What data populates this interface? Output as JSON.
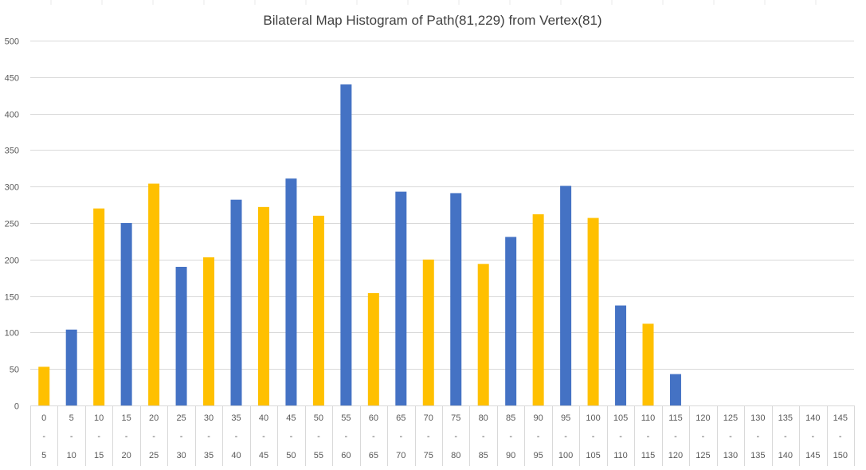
{
  "chart_data": {
    "type": "bar",
    "title": "Bilateral Map Histogram of Path(81,229) from Vertex(81)",
    "xlabel": "",
    "ylabel": "",
    "ylim": [
      0,
      500
    ],
    "yticks": [
      "0",
      "50",
      "100",
      "150",
      "200",
      "250",
      "300",
      "350",
      "400",
      "450",
      "500"
    ],
    "grid": true,
    "legend": "none",
    "categories": [
      {
        "start": "0",
        "sep": "-",
        "end": "5"
      },
      {
        "start": "5",
        "sep": "-",
        "end": "10"
      },
      {
        "start": "10",
        "sep": "-",
        "end": "15"
      },
      {
        "start": "15",
        "sep": "-",
        "end": "20"
      },
      {
        "start": "20",
        "sep": "-",
        "end": "25"
      },
      {
        "start": "25",
        "sep": "-",
        "end": "30"
      },
      {
        "start": "30",
        "sep": "-",
        "end": "35"
      },
      {
        "start": "35",
        "sep": "-",
        "end": "40"
      },
      {
        "start": "40",
        "sep": "-",
        "end": "45"
      },
      {
        "start": "45",
        "sep": "-",
        "end": "50"
      },
      {
        "start": "50",
        "sep": "-",
        "end": "55"
      },
      {
        "start": "55",
        "sep": "-",
        "end": "60"
      },
      {
        "start": "60",
        "sep": "-",
        "end": "65"
      },
      {
        "start": "65",
        "sep": "-",
        "end": "70"
      },
      {
        "start": "70",
        "sep": "-",
        "end": "75"
      },
      {
        "start": "75",
        "sep": "-",
        "end": "80"
      },
      {
        "start": "80",
        "sep": "-",
        "end": "85"
      },
      {
        "start": "85",
        "sep": "-",
        "end": "90"
      },
      {
        "start": "90",
        "sep": "-",
        "end": "95"
      },
      {
        "start": "95",
        "sep": "-",
        "end": "100"
      },
      {
        "start": "100",
        "sep": "-",
        "end": "105"
      },
      {
        "start": "105",
        "sep": "-",
        "end": "110"
      },
      {
        "start": "110",
        "sep": "-",
        "end": "115"
      },
      {
        "start": "115",
        "sep": "-",
        "end": "120"
      },
      {
        "start": "120",
        "sep": "-",
        "end": "125"
      },
      {
        "start": "125",
        "sep": "-",
        "end": "130"
      },
      {
        "start": "130",
        "sep": "-",
        "end": "135"
      },
      {
        "start": "135",
        "sep": "-",
        "end": "140"
      },
      {
        "start": "140",
        "sep": "-",
        "end": "145"
      },
      {
        "start": "145",
        "sep": "-",
        "end": "150"
      }
    ],
    "values": [
      53,
      104,
      270,
      250,
      304,
      190,
      203,
      282,
      272,
      311,
      260,
      440,
      154,
      293,
      200,
      291,
      194,
      231,
      262,
      301,
      257,
      137,
      112,
      43,
      0,
      0,
      0,
      0,
      0,
      0
    ],
    "bar_colors": [
      "#FFC000",
      "#4472C4",
      "#FFC000",
      "#4472C4",
      "#FFC000",
      "#4472C4",
      "#FFC000",
      "#4472C4",
      "#FFC000",
      "#4472C4",
      "#FFC000",
      "#4472C4",
      "#FFC000",
      "#4472C4",
      "#FFC000",
      "#4472C4",
      "#FFC000",
      "#4472C4",
      "#FFC000",
      "#4472C4",
      "#FFC000",
      "#4472C4",
      "#FFC000",
      "#4472C4",
      "#FFC000",
      "#4472C4",
      "#FFC000",
      "#4472C4",
      "#FFC000",
      "#4472C4"
    ],
    "colors": {
      "gold": "#FFC000",
      "blue": "#4472C4",
      "grid": "#D9D9D9",
      "text": "#595959",
      "title": "#404040"
    }
  }
}
